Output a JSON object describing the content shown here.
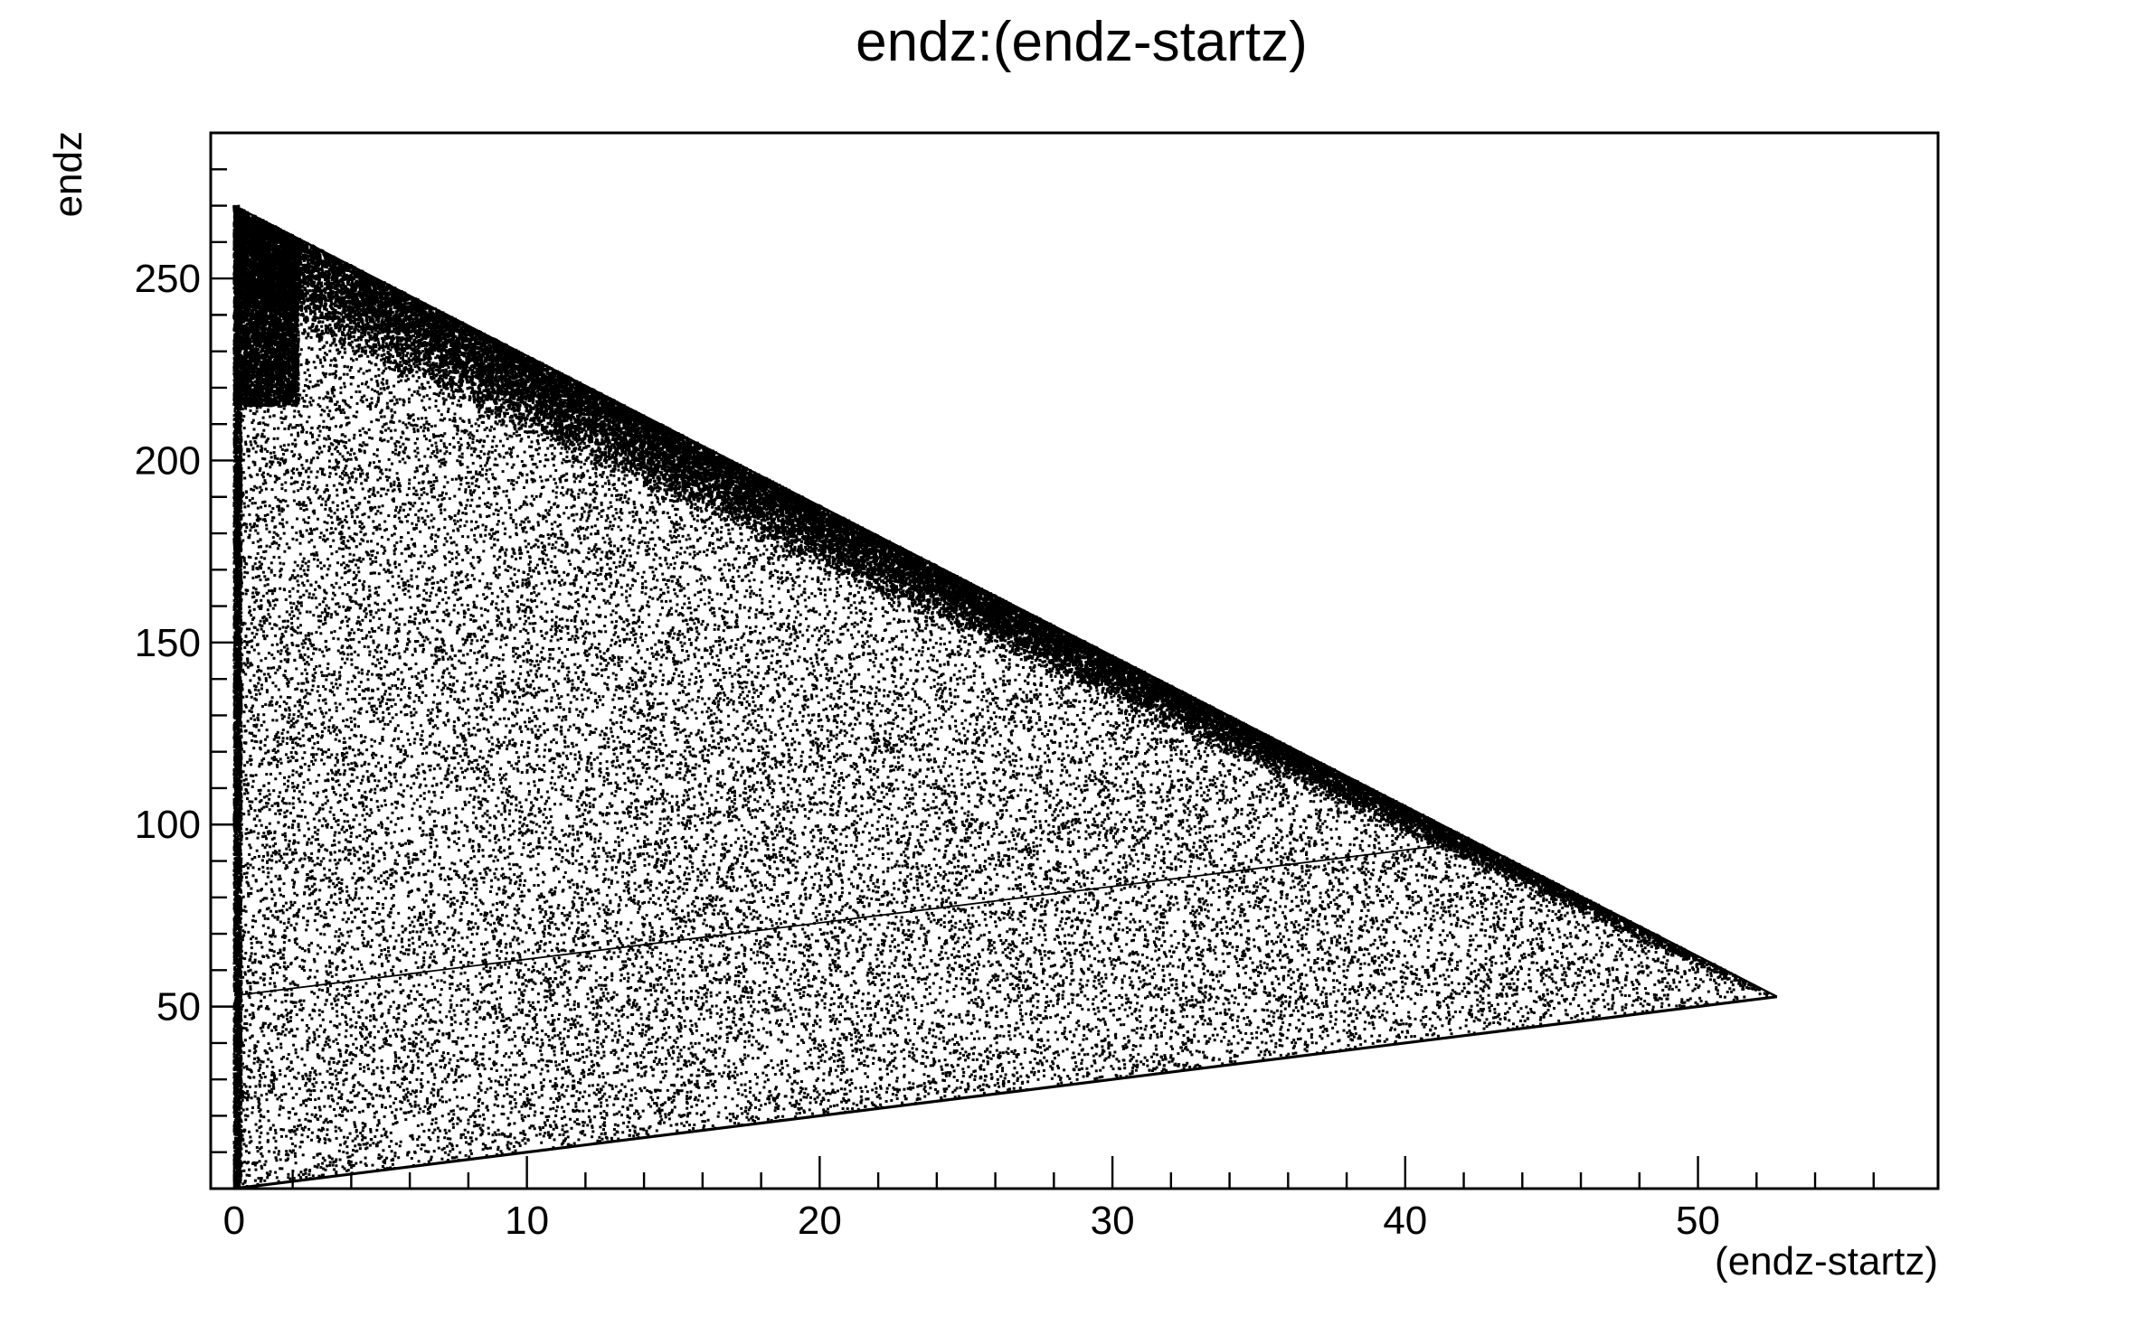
{
  "chart_data": {
    "type": "scatter",
    "title": "endz:(endz-startz)",
    "xlabel": "(endz-startz)",
    "ylabel": "endz",
    "xlim": [
      -0.8,
      58.2
    ],
    "ylim": [
      0,
      290
    ],
    "x_ticks": [
      0,
      10,
      20,
      30,
      40,
      50
    ],
    "y_ticks": [
      50,
      100,
      150,
      200,
      250
    ],
    "x_tick_labels": [
      "0",
      "10",
      "20",
      "30",
      "40",
      "50"
    ],
    "y_tick_labels": [
      "50",
      "100",
      "150",
      "200",
      "250"
    ],
    "grid": false,
    "legend": "none",
    "marker_color": "#000000",
    "distribution": {
      "description_shape": "triangle",
      "vertices": [
        [
          0,
          0
        ],
        [
          0,
          270
        ],
        [
          52.7,
          52.7
        ]
      ],
      "upper_edge": {
        "from": [
          0,
          270
        ],
        "to": [
          52.7,
          52.7
        ]
      },
      "lower_edge": {
        "from": [
          0,
          0
        ],
        "to": [
          52.7,
          52.7
        ]
      },
      "dense_band_along_upper_edge": true,
      "faint_line": {
        "from": [
          0,
          53
        ],
        "to": [
          41,
          94
        ]
      }
    }
  }
}
